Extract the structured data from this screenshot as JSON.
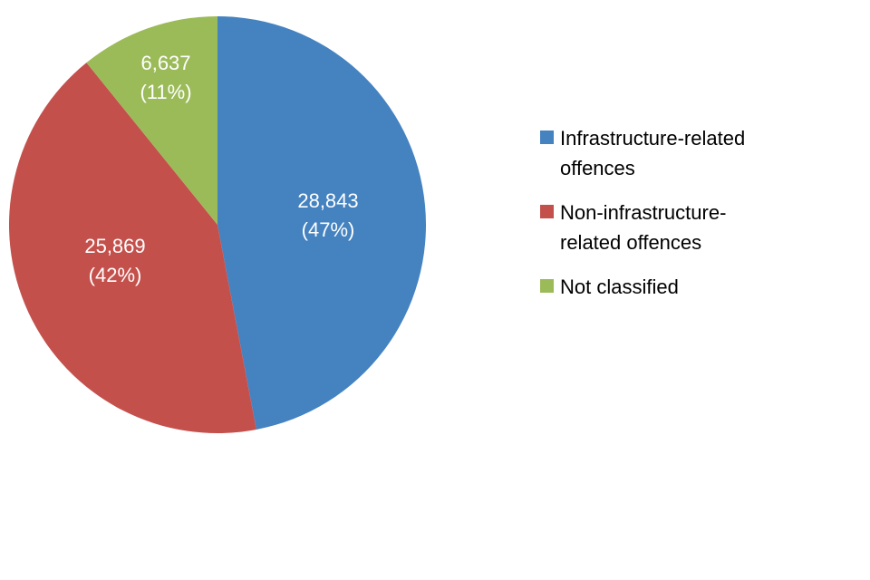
{
  "chart_data": {
    "type": "pie",
    "title": "",
    "start": "top",
    "direction": "clockwise",
    "legend_position": "right",
    "slices": [
      {
        "name": "Infrastructure-related offences",
        "legend_lines": [
          "Infrastructure-related",
          "offences"
        ],
        "value": 28843,
        "value_label": "28,843",
        "percent_label": "(47%)",
        "color": "#4482C0"
      },
      {
        "name": "Non-infrastructure-related offences",
        "legend_lines": [
          "Non-infrastructure-",
          "related offences"
        ],
        "value": 25869,
        "value_label": "25,869",
        "percent_label": "(42%)",
        "color": "#C4504C"
      },
      {
        "name": "Not classified",
        "legend_lines": [
          "Not classified"
        ],
        "value": 6637,
        "value_label": "6,637",
        "percent_label": "(11%)",
        "color": "#9BBB59"
      }
    ]
  }
}
